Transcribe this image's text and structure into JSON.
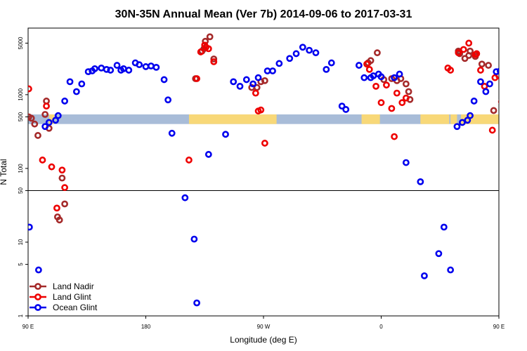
{
  "chart_data": {
    "type": "scatter",
    "title": "30N-35N Annual Mean (Ver 7b)   2014-09-06 to 2017-03-31",
    "xlabel": "Longitude (deg E)",
    "ylabel": "N Total",
    "y_scale": "log",
    "xlim": [
      90,
      450
    ],
    "ylim": [
      1,
      8000
    ],
    "x_ticks": [
      {
        "value": 90,
        "label": "90 E"
      },
      {
        "value": 180,
        "label": "180"
      },
      {
        "value": 270,
        "label": "90 W"
      },
      {
        "value": 360,
        "label": "0"
      },
      {
        "value": 450,
        "label": "90 E"
      },
      {
        "value": 540,
        "label": "180"
      }
    ],
    "y_ticks": [
      {
        "value": 1,
        "label": "1"
      },
      {
        "value": 5,
        "label": "5"
      },
      {
        "value": 10,
        "label": "10"
      },
      {
        "value": 50,
        "label": "50"
      },
      {
        "value": 100,
        "label": "100"
      },
      {
        "value": 500,
        "label": "500"
      },
      {
        "value": 1000,
        "label": "1000"
      },
      {
        "value": 5000,
        "label": "5000"
      }
    ],
    "reference_line": {
      "y": 50,
      "color": "#000000"
    },
    "land_band": {
      "y_low": 400,
      "y_high": 540,
      "ocean_color": "#a8bcd8",
      "land_color": "#f8d878",
      "land_segments": [
        [
          106,
          110
        ],
        [
          213,
          280
        ],
        [
          345,
          359
        ],
        [
          390,
          412
        ],
        [
          413,
          418
        ],
        [
          421,
          468
        ],
        [
          485,
          499
        ],
        [
          524,
          578
        ]
      ]
    },
    "legend_position": "bottom-left",
    "series": [
      {
        "name": "Land Nadir",
        "color": "#a52a2a",
        "points": [
          [
            90.5,
            500
          ],
          [
            92.5,
            480
          ],
          [
            95,
            400
          ],
          [
            97.5,
            280
          ],
          [
            103,
            540
          ],
          [
            104,
            820
          ],
          [
            106,
            350
          ],
          [
            112.5,
            22
          ],
          [
            114,
            20
          ],
          [
            116,
            74
          ],
          [
            118,
            33
          ],
          [
            218,
            1650
          ],
          [
            223,
            3900
          ],
          [
            224.5,
            4200
          ],
          [
            225.5,
            5300
          ],
          [
            229,
            6100
          ],
          [
            232,
            3050
          ],
          [
            261,
            1250
          ],
          [
            265,
            1250
          ],
          [
            268,
            1500
          ],
          [
            271,
            1550
          ],
          [
            350,
            2700
          ],
          [
            352,
            2900
          ],
          [
            357,
            3700
          ],
          [
            362,
            1600
          ],
          [
            368,
            1650
          ],
          [
            372,
            1550
          ],
          [
            375,
            1650
          ],
          [
            379,
            1400
          ],
          [
            381,
            1100
          ],
          [
            382,
            860
          ],
          [
            419,
            3900
          ],
          [
            420,
            3600
          ],
          [
            424,
            3100
          ],
          [
            427,
            3400
          ],
          [
            428,
            3900
          ],
          [
            432,
            3300
          ],
          [
            437,
            2600
          ],
          [
            442,
            2500
          ],
          [
            446,
            610
          ],
          [
            452,
            800
          ],
          [
            455,
            540
          ],
          [
            457,
            480
          ],
          [
            464,
            540
          ],
          [
            469,
            620
          ],
          [
            474,
            410
          ],
          [
            476,
            280
          ],
          [
            477,
            22
          ],
          [
            479,
            20
          ],
          [
            481,
            74
          ],
          [
            483,
            33
          ]
        ]
      },
      {
        "name": "Land Glint",
        "color": "#ee0000",
        "points": [
          [
            90.5,
            1200
          ],
          [
            101,
            130
          ],
          [
            104,
            700
          ],
          [
            108,
            105
          ],
          [
            112,
            29
          ],
          [
            116,
            95
          ],
          [
            118,
            55
          ],
          [
            213,
            130
          ],
          [
            219,
            1650
          ],
          [
            222,
            3800
          ],
          [
            225,
            4700
          ],
          [
            226,
            4400
          ],
          [
            228,
            4200
          ],
          [
            232,
            2800
          ],
          [
            264,
            1050
          ],
          [
            266,
            600
          ],
          [
            268,
            620
          ],
          [
            271,
            220
          ],
          [
            349,
            2600
          ],
          [
            351,
            2200
          ],
          [
            356,
            1300
          ],
          [
            360,
            780
          ],
          [
            364,
            1350
          ],
          [
            368,
            650
          ],
          [
            370,
            270
          ],
          [
            372,
            1050
          ],
          [
            376,
            780
          ],
          [
            379,
            900
          ],
          [
            411,
            2300
          ],
          [
            413,
            2150
          ],
          [
            419,
            3700
          ],
          [
            423,
            4100
          ],
          [
            427,
            5000
          ],
          [
            432,
            3500
          ],
          [
            433,
            3600
          ],
          [
            436,
            2150
          ],
          [
            439,
            1300
          ],
          [
            445,
            330
          ],
          [
            447,
            1700
          ],
          [
            450,
            1800
          ],
          [
            454,
            1200
          ],
          [
            458,
            560
          ],
          [
            463,
            280
          ],
          [
            466,
            125
          ],
          [
            468,
            540
          ],
          [
            473,
            105
          ],
          [
            475,
            29
          ],
          [
            478,
            95
          ],
          [
            479,
            55
          ]
        ]
      },
      {
        "name": "Ocean Glint",
        "color": "#0000ee",
        "points": [
          [
            91,
            16
          ],
          [
            98,
            4.2
          ],
          [
            103,
            370
          ],
          [
            106,
            420
          ],
          [
            111,
            450
          ],
          [
            113,
            520
          ],
          [
            118,
            820
          ],
          [
            122,
            1500
          ],
          [
            127,
            1100
          ],
          [
            131,
            1400
          ],
          [
            136,
            2050
          ],
          [
            139,
            2100
          ],
          [
            141,
            2250
          ],
          [
            146,
            2300
          ],
          [
            150,
            2200
          ],
          [
            153,
            2150
          ],
          [
            158,
            2500
          ],
          [
            161,
            2150
          ],
          [
            163,
            2250
          ],
          [
            167,
            2150
          ],
          [
            172,
            2700
          ],
          [
            175,
            2550
          ],
          [
            180,
            2400
          ],
          [
            184,
            2450
          ],
          [
            188,
            2350
          ],
          [
            194,
            1600
          ],
          [
            197,
            850
          ],
          [
            200,
            300
          ],
          [
            210,
            40
          ],
          [
            217,
            11
          ],
          [
            219,
            1.5
          ],
          [
            228,
            155
          ],
          [
            241,
            290
          ],
          [
            247,
            1500
          ],
          [
            252,
            1300
          ],
          [
            257,
            1600
          ],
          [
            262,
            1400
          ],
          [
            266,
            1700
          ],
          [
            273,
            2100
          ],
          [
            277,
            2100
          ],
          [
            282,
            2650
          ],
          [
            290,
            3100
          ],
          [
            295,
            3600
          ],
          [
            300,
            4400
          ],
          [
            305,
            4000
          ],
          [
            310,
            3700
          ],
          [
            318,
            2200
          ],
          [
            322,
            2700
          ],
          [
            330,
            700
          ],
          [
            333,
            630
          ],
          [
            343,
            2500
          ],
          [
            347,
            1700
          ],
          [
            352,
            1700
          ],
          [
            354,
            1800
          ],
          [
            358,
            1900
          ],
          [
            360,
            1750
          ],
          [
            370,
            1700
          ],
          [
            374,
            1900
          ],
          [
            379,
            120
          ],
          [
            393,
            3.5
          ],
          [
            390,
            66
          ],
          [
            404,
            7
          ],
          [
            408,
            16
          ],
          [
            413,
            4.2
          ],
          [
            418,
            370
          ],
          [
            422,
            420
          ],
          [
            426,
            450
          ],
          [
            428,
            520
          ],
          [
            431,
            820
          ],
          [
            436,
            1500
          ],
          [
            440,
            1100
          ],
          [
            443,
            1400
          ],
          [
            448,
            2050
          ],
          [
            451,
            2100
          ],
          [
            454,
            2250
          ],
          [
            458,
            2300
          ]
        ]
      }
    ]
  }
}
